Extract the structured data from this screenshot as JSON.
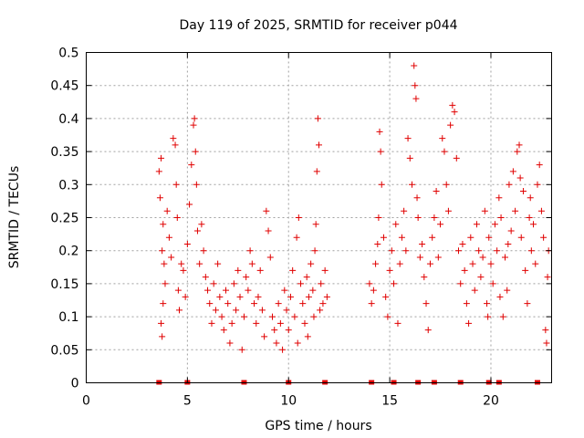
{
  "chart_data": {
    "type": "scatter",
    "title": "Day 119 of 2025, SRMTID for receiver p044",
    "xlabel": "GPS time / hours",
    "ylabel": "SRMTID / TECUs",
    "xlim": [
      0,
      23
    ],
    "ylim": [
      0,
      0.5
    ],
    "xticks": [
      "0",
      "5",
      "10",
      "15",
      "20"
    ],
    "yticks": [
      "0",
      "0.05",
      "0.1",
      "0.15",
      "0.2",
      "0.25",
      "0.3",
      "0.35",
      "0.4",
      "0.45",
      "0.5"
    ],
    "grid": true,
    "marker": "+",
    "color": "#e00000",
    "series": [
      {
        "name": "p044",
        "points": [
          [
            3.6,
            0.32
          ],
          [
            3.65,
            0.28
          ],
          [
            3.7,
            0.34
          ],
          [
            3.75,
            0.2
          ],
          [
            3.8,
            0.24
          ],
          [
            3.85,
            0.18
          ],
          [
            3.9,
            0.15
          ],
          [
            3.7,
            0.09
          ],
          [
            3.75,
            0.07
          ],
          [
            3.8,
            0.12
          ],
          [
            4.0,
            0.26
          ],
          [
            4.1,
            0.22
          ],
          [
            4.2,
            0.19
          ],
          [
            4.3,
            0.37
          ],
          [
            4.4,
            0.36
          ],
          [
            4.45,
            0.3
          ],
          [
            4.5,
            0.25
          ],
          [
            4.55,
            0.14
          ],
          [
            4.6,
            0.11
          ],
          [
            4.7,
            0.18
          ],
          [
            4.8,
            0.17
          ],
          [
            4.9,
            0.13
          ],
          [
            5.0,
            0.21
          ],
          [
            5.1,
            0.27
          ],
          [
            5.2,
            0.33
          ],
          [
            5.3,
            0.39
          ],
          [
            5.35,
            0.4
          ],
          [
            5.4,
            0.35
          ],
          [
            5.45,
            0.3
          ],
          [
            5.5,
            0.23
          ],
          [
            5.6,
            0.18
          ],
          [
            5.7,
            0.24
          ],
          [
            5.8,
            0.2
          ],
          [
            5.9,
            0.16
          ],
          [
            6.0,
            0.14
          ],
          [
            6.1,
            0.12
          ],
          [
            6.2,
            0.09
          ],
          [
            6.3,
            0.15
          ],
          [
            6.4,
            0.11
          ],
          [
            6.5,
            0.18
          ],
          [
            6.6,
            0.13
          ],
          [
            6.7,
            0.1
          ],
          [
            6.8,
            0.08
          ],
          [
            6.9,
            0.14
          ],
          [
            7.0,
            0.12
          ],
          [
            7.1,
            0.06
          ],
          [
            7.2,
            0.09
          ],
          [
            7.3,
            0.15
          ],
          [
            7.4,
            0.11
          ],
          [
            7.5,
            0.17
          ],
          [
            7.6,
            0.13
          ],
          [
            7.7,
            0.05
          ],
          [
            7.8,
            0.1
          ],
          [
            7.9,
            0.16
          ],
          [
            8.0,
            0.14
          ],
          [
            8.1,
            0.2
          ],
          [
            8.2,
            0.18
          ],
          [
            8.3,
            0.12
          ],
          [
            8.4,
            0.09
          ],
          [
            8.5,
            0.13
          ],
          [
            8.6,
            0.17
          ],
          [
            8.7,
            0.11
          ],
          [
            8.8,
            0.07
          ],
          [
            8.9,
            0.26
          ],
          [
            9.0,
            0.23
          ],
          [
            9.1,
            0.19
          ],
          [
            9.2,
            0.1
          ],
          [
            9.3,
            0.08
          ],
          [
            9.4,
            0.06
          ],
          [
            9.5,
            0.12
          ],
          [
            9.6,
            0.09
          ],
          [
            9.7,
            0.05
          ],
          [
            9.8,
            0.14
          ],
          [
            9.9,
            0.11
          ],
          [
            10.0,
            0.08
          ],
          [
            10.1,
            0.13
          ],
          [
            10.2,
            0.17
          ],
          [
            10.3,
            0.1
          ],
          [
            10.4,
            0.22
          ],
          [
            10.5,
            0.25
          ],
          [
            10.6,
            0.15
          ],
          [
            10.7,
            0.12
          ],
          [
            10.8,
            0.09
          ],
          [
            10.9,
            0.16
          ],
          [
            11.0,
            0.13
          ],
          [
            11.1,
            0.18
          ],
          [
            11.2,
            0.14
          ],
          [
            11.3,
            0.2
          ],
          [
            11.4,
            0.32
          ],
          [
            11.45,
            0.4
          ],
          [
            11.5,
            0.36
          ],
          [
            11.6,
            0.15
          ],
          [
            11.7,
            0.12
          ],
          [
            11.8,
            0.17
          ],
          [
            11.9,
            0.13
          ],
          [
            11.55,
            0.11
          ],
          [
            11.35,
            0.24
          ],
          [
            11.25,
            0.1
          ],
          [
            10.95,
            0.07
          ],
          [
            10.45,
            0.06
          ],
          [
            14.0,
            0.15
          ],
          [
            14.1,
            0.12
          ],
          [
            14.2,
            0.14
          ],
          [
            14.3,
            0.18
          ],
          [
            14.4,
            0.21
          ],
          [
            14.45,
            0.25
          ],
          [
            14.5,
            0.38
          ],
          [
            14.55,
            0.35
          ],
          [
            14.6,
            0.3
          ],
          [
            14.7,
            0.22
          ],
          [
            14.8,
            0.13
          ],
          [
            14.9,
            0.1
          ],
          [
            15.0,
            0.17
          ],
          [
            15.1,
            0.2
          ],
          [
            15.2,
            0.15
          ],
          [
            15.3,
            0.24
          ],
          [
            15.4,
            0.09
          ],
          [
            15.5,
            0.18
          ],
          [
            15.6,
            0.22
          ],
          [
            15.7,
            0.26
          ],
          [
            15.8,
            0.2
          ],
          [
            15.9,
            0.37
          ],
          [
            16.0,
            0.34
          ],
          [
            16.1,
            0.3
          ],
          [
            16.2,
            0.48
          ],
          [
            16.25,
            0.45
          ],
          [
            16.3,
            0.43
          ],
          [
            16.35,
            0.28
          ],
          [
            16.4,
            0.25
          ],
          [
            16.5,
            0.19
          ],
          [
            16.6,
            0.21
          ],
          [
            16.7,
            0.16
          ],
          [
            16.8,
            0.12
          ],
          [
            16.9,
            0.08
          ],
          [
            17.0,
            0.18
          ],
          [
            17.1,
            0.22
          ],
          [
            17.2,
            0.25
          ],
          [
            17.3,
            0.29
          ],
          [
            17.4,
            0.19
          ],
          [
            17.5,
            0.24
          ],
          [
            17.6,
            0.37
          ],
          [
            17.7,
            0.35
          ],
          [
            17.8,
            0.3
          ],
          [
            17.9,
            0.26
          ],
          [
            18.0,
            0.39
          ],
          [
            18.1,
            0.42
          ],
          [
            18.2,
            0.41
          ],
          [
            18.3,
            0.34
          ],
          [
            18.4,
            0.2
          ],
          [
            18.5,
            0.15
          ],
          [
            18.6,
            0.21
          ],
          [
            18.7,
            0.17
          ],
          [
            18.8,
            0.12
          ],
          [
            18.9,
            0.09
          ],
          [
            19.0,
            0.22
          ],
          [
            19.1,
            0.18
          ],
          [
            19.2,
            0.14
          ],
          [
            19.3,
            0.24
          ],
          [
            19.4,
            0.2
          ],
          [
            19.5,
            0.16
          ],
          [
            19.6,
            0.19
          ],
          [
            19.7,
            0.26
          ],
          [
            19.8,
            0.12
          ],
          [
            19.9,
            0.22
          ],
          [
            20.0,
            0.18
          ],
          [
            20.1,
            0.15
          ],
          [
            20.2,
            0.24
          ],
          [
            20.3,
            0.2
          ],
          [
            20.4,
            0.28
          ],
          [
            20.5,
            0.25
          ],
          [
            20.6,
            0.1
          ],
          [
            20.7,
            0.19
          ],
          [
            20.8,
            0.14
          ],
          [
            20.9,
            0.3
          ],
          [
            21.0,
            0.23
          ],
          [
            21.1,
            0.32
          ],
          [
            21.2,
            0.26
          ],
          [
            21.3,
            0.35
          ],
          [
            21.4,
            0.36
          ],
          [
            21.5,
            0.22
          ],
          [
            21.6,
            0.29
          ],
          [
            21.7,
            0.17
          ],
          [
            21.8,
            0.12
          ],
          [
            21.9,
            0.25
          ],
          [
            22.0,
            0.2
          ],
          [
            22.1,
            0.24
          ],
          [
            22.2,
            0.18
          ],
          [
            22.3,
            0.3
          ],
          [
            22.4,
            0.33
          ],
          [
            22.5,
            0.26
          ],
          [
            22.6,
            0.22
          ],
          [
            22.7,
            0.08
          ],
          [
            22.75,
            0.06
          ],
          [
            22.8,
            0.16
          ],
          [
            22.85,
            0.2
          ],
          [
            21.95,
            0.28
          ],
          [
            21.45,
            0.31
          ],
          [
            20.85,
            0.21
          ],
          [
            20.45,
            0.13
          ],
          [
            19.85,
            0.1
          ]
        ]
      }
    ],
    "axis_markers_x": [
      3.6,
      5.0,
      7.8,
      10.0,
      11.8,
      14.1,
      15.2,
      16.4,
      17.2,
      18.5,
      19.9,
      20.4,
      22.3
    ]
  }
}
